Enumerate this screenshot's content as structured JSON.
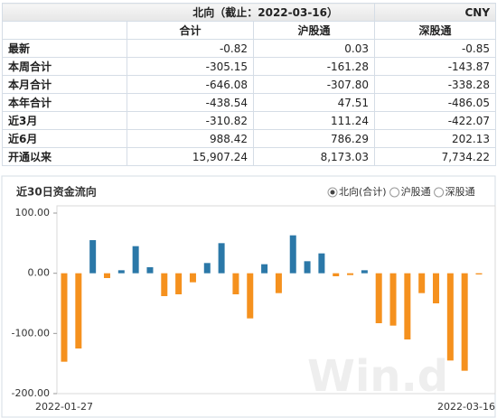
{
  "header": {
    "title": "北向（截止：2022-03-16）",
    "currency": "CNY"
  },
  "table": {
    "columns": [
      "合计",
      "沪股通",
      "深股通"
    ],
    "rows": [
      [
        "最新",
        "-0.82",
        "0.03",
        "-0.85"
      ],
      [
        "本周合计",
        "-305.15",
        "-161.28",
        "-143.87"
      ],
      [
        "本月合计",
        "-646.08",
        "-307.80",
        "-338.28"
      ],
      [
        "本年合计",
        "-438.54",
        "47.51",
        "-486.05"
      ],
      [
        "近3月",
        "-310.82",
        "111.24",
        "-422.07"
      ],
      [
        "近6月",
        "988.42",
        "786.29",
        "202.13"
      ],
      [
        "开通以来",
        "15,907.24",
        "8,173.03",
        "7,734.22"
      ]
    ]
  },
  "chart_data": {
    "type": "bar",
    "title": "近30日资金流向",
    "legend": [
      "北向(合计)",
      "沪股通",
      "深股通"
    ],
    "selected": 0,
    "watermark": "Win.d",
    "categories": [
      "2022-01-27",
      null,
      null,
      null,
      null,
      null,
      null,
      null,
      null,
      null,
      null,
      null,
      null,
      null,
      null,
      null,
      null,
      null,
      null,
      null,
      null,
      null,
      null,
      null,
      null,
      null,
      null,
      null,
      null,
      "2022-03-16"
    ],
    "values": [
      -147,
      -125,
      55,
      -8,
      5,
      45,
      10,
      -38,
      -35,
      -15,
      17,
      50,
      -35,
      -75,
      15,
      -33,
      63,
      20,
      33,
      -5,
      -3,
      5,
      -83,
      -87,
      -110,
      -33,
      -50,
      -145,
      -162,
      -2
    ],
    "colors": {
      "positive": "#2b78a8",
      "negative": "#f5911e"
    },
    "ylim": [
      -200,
      112
    ],
    "yticks": [
      {
        "value": 100,
        "label": "100.00"
      },
      {
        "value": 0,
        "label": "0.00"
      },
      {
        "value": -100,
        "label": "-100.00"
      },
      {
        "value": -200,
        "label": "-200.00"
      }
    ],
    "grid": false
  }
}
